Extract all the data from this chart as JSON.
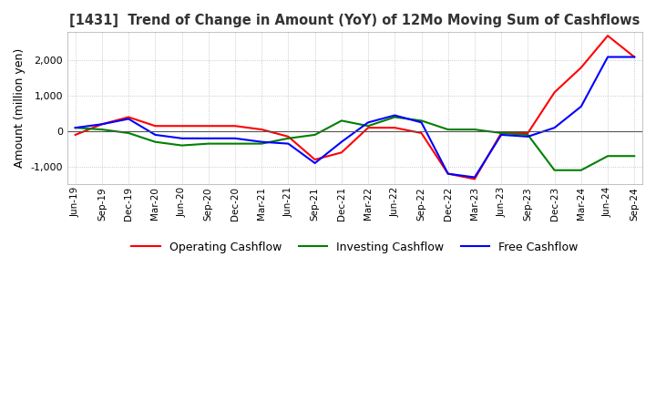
{
  "title": "[1431]  Trend of Change in Amount (YoY) of 12Mo Moving Sum of Cashflows",
  "ylabel": "Amount (million yen)",
  "x_labels": [
    "Jun-19",
    "Sep-19",
    "Dec-19",
    "Mar-20",
    "Jun-20",
    "Sep-20",
    "Dec-20",
    "Mar-21",
    "Jun-21",
    "Sep-21",
    "Dec-21",
    "Mar-22",
    "Jun-22",
    "Sep-22",
    "Dec-22",
    "Mar-23",
    "Jun-23",
    "Sep-23",
    "Dec-23",
    "Mar-24",
    "Jun-24",
    "Sep-24"
  ],
  "operating": [
    -100,
    200,
    400,
    150,
    150,
    150,
    150,
    50,
    -150,
    -800,
    -600,
    100,
    100,
    -50,
    -1200,
    -1350,
    -50,
    -50,
    1100,
    1800,
    2700,
    2100
  ],
  "investing": [
    100,
    50,
    -50,
    -300,
    -400,
    -350,
    -350,
    -350,
    -200,
    -100,
    300,
    150,
    400,
    300,
    50,
    50,
    -50,
    -100,
    -1100,
    -1100,
    -700,
    -700
  ],
  "free": [
    100,
    200,
    350,
    -100,
    -200,
    -200,
    -200,
    -300,
    -350,
    -900,
    -300,
    250,
    450,
    250,
    -1200,
    -1300,
    -100,
    -150,
    100,
    700,
    2100,
    2100
  ],
  "colors": {
    "operating": "#ff0000",
    "investing": "#008000",
    "free": "#0000ff"
  },
  "ylim": [
    -1500,
    2800
  ],
  "yticks": [
    -1000,
    0,
    1000,
    2000
  ],
  "legend_labels": [
    "Operating Cashflow",
    "Investing Cashflow",
    "Free Cashflow"
  ],
  "background_color": "#ffffff",
  "grid_color": "#bbbbbb"
}
